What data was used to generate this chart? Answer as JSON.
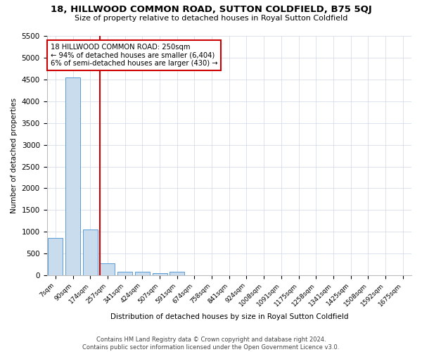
{
  "title": "18, HILLWOOD COMMON ROAD, SUTTON COLDFIELD, B75 5QJ",
  "subtitle": "Size of property relative to detached houses in Royal Sutton Coldfield",
  "xlabel": "Distribution of detached houses by size in Royal Sutton Coldfield",
  "ylabel": "Number of detached properties",
  "bin_labels": [
    "7sqm",
    "90sqm",
    "174sqm",
    "257sqm",
    "341sqm",
    "424sqm",
    "507sqm",
    "591sqm",
    "674sqm",
    "758sqm",
    "841sqm",
    "924sqm",
    "1008sqm",
    "1091sqm",
    "1175sqm",
    "1258sqm",
    "1341sqm",
    "1425sqm",
    "1508sqm",
    "1592sqm",
    "1675sqm"
  ],
  "bin_values": [
    850,
    4550,
    1050,
    270,
    85,
    75,
    50,
    70,
    0,
    0,
    0,
    0,
    0,
    0,
    0,
    0,
    0,
    0,
    0,
    0,
    0
  ],
  "bar_color": "#c9dced",
  "bar_edge_color": "#5b9bd5",
  "property_line_bin": 3,
  "property_size": "250sqm",
  "property_name": "18 HILLWOOD COMMON ROAD",
  "pct_smaller": 94,
  "count_smaller": "6,404",
  "pct_larger": 6,
  "count_larger": 430,
  "annotation_box_color": "#ffffff",
  "annotation_box_edge": "#cc0000",
  "vline_color": "#cc0000",
  "ylim": [
    0,
    5500
  ],
  "yticks": [
    0,
    500,
    1000,
    1500,
    2000,
    2500,
    3000,
    3500,
    4000,
    4500,
    5000,
    5500
  ],
  "footer1": "Contains HM Land Registry data © Crown copyright and database right 2024.",
  "footer2": "Contains public sector information licensed under the Open Government Licence v3.0.",
  "bg_color": "#ffffff",
  "grid_color": "#cdd8e8"
}
